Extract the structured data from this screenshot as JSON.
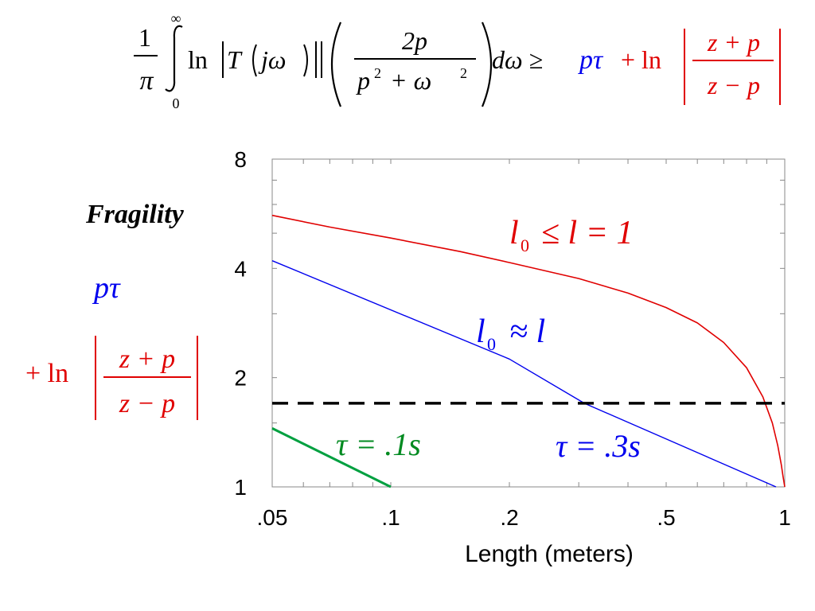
{
  "equation": {
    "frac1_num": "1",
    "frac1_den": "π",
    "int_upper": "∞",
    "int_lower": "0",
    "ln": "ln",
    "T": "T",
    "j_omega": "jω",
    "frac2_num": "2p",
    "frac2_den_p": "p",
    "frac2_den_sq": "2",
    "frac2_den_plus": "+ ω",
    "frac2_den_sq2": "2",
    "d_omega": "dω ≥",
    "p_tau": "pτ",
    "plus_ln": "+ ln",
    "frac3_num": "z + p",
    "frac3_den": "z − p",
    "colors": {
      "black": "#000000",
      "blue": "#0000ee",
      "red": "#e00000"
    }
  },
  "left_label": {
    "fragility": "Fragility",
    "p_tau": "pτ",
    "plus_ln": "+ ln",
    "frac_num": "z + p",
    "frac_den": "z − p"
  },
  "chart_data": {
    "type": "line",
    "xlabel": "Length  (meters)",
    "ylabel": "",
    "xscale": "log",
    "yscale": "log",
    "xlim": [
      0.05,
      1.0
    ],
    "ylim": [
      1,
      8
    ],
    "x_ticks": [
      {
        "value": 0.05,
        "label": ".05"
      },
      {
        "value": 0.1,
        "label": ".1"
      },
      {
        "value": 0.2,
        "label": ".2"
      },
      {
        "value": 0.5,
        "label": ".5"
      },
      {
        "value": 1.0,
        "label": "1"
      }
    ],
    "y_ticks": [
      {
        "value": 1,
        "label": "1"
      },
      {
        "value": 2,
        "label": "2"
      },
      {
        "value": 4,
        "label": "4"
      },
      {
        "value": 8,
        "label": "8"
      }
    ],
    "series": [
      {
        "color": "#e00000",
        "stroke": 1.6,
        "x": [
          0.05,
          0.07,
          0.1,
          0.15,
          0.2,
          0.3,
          0.4,
          0.5,
          0.6,
          0.7,
          0.8,
          0.88,
          0.93,
          0.96,
          0.98,
          0.99,
          1.0
        ],
        "y": [
          5.6,
          5.2,
          4.85,
          4.45,
          4.15,
          3.75,
          3.42,
          3.12,
          2.83,
          2.5,
          2.13,
          1.77,
          1.5,
          1.3,
          1.15,
          1.07,
          1.0
        ]
      },
      {
        "color": "#0000ee",
        "stroke": 1.4,
        "x": [
          0.05,
          0.2,
          0.31,
          0.95
        ],
        "y": [
          4.2,
          2.25,
          1.7,
          1.0
        ]
      },
      {
        "color": "#00a040",
        "stroke": 3,
        "x": [
          0.05,
          0.1
        ],
        "y": [
          1.45,
          1.0
        ]
      },
      {
        "color": "#000000",
        "stroke": 3.5,
        "dashed": true,
        "x": [
          0.05,
          1.0
        ],
        "y": [
          1.7,
          1.7
        ]
      }
    ],
    "annotations": {
      "red_label": {
        "l": "l",
        "sub": "0",
        "rest": "≤ l = 1",
        "color": "#e00000"
      },
      "blue_label": {
        "l": "l",
        "sub": "0",
        "rest": "≈ l",
        "color": "#0000ee"
      },
      "tau_green": {
        "text": "τ = .1s",
        "color": "#008a20"
      },
      "tau_blue": {
        "text": "τ = .3s",
        "color": "#0000ee"
      }
    }
  }
}
